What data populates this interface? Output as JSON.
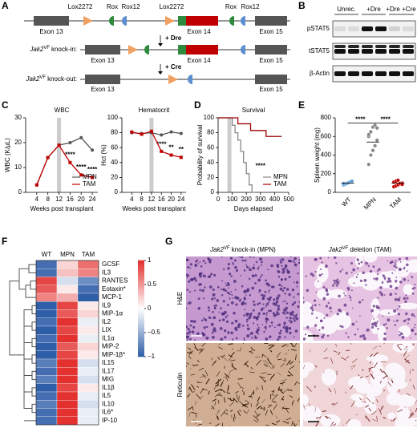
{
  "panel_labels": [
    "A",
    "B",
    "C",
    "D",
    "E",
    "F",
    "G"
  ],
  "diagram": {
    "annotations": [
      "Lox2272",
      "Rox",
      "Rox12",
      "Lox2272",
      "Rox",
      "Rox12"
    ],
    "rows": [
      {
        "exons": [
          "Exon 13",
          "Exon 14",
          "Exon 15"
        ]
      },
      {
        "label": {
          "gene": "Jak2",
          "sup": "VF",
          "text": "knock-in:"
        },
        "exons": [
          "Exon 13",
          "Exon 14",
          "Exon 15"
        ]
      },
      {
        "label": {
          "gene": "Jak2",
          "sup": "VF",
          "text": "knock-out:"
        },
        "exons": [
          "Exon 13",
          "Exon 15"
        ]
      }
    ],
    "steps": [
      "+ Dre",
      "+ Cre"
    ]
  },
  "blot": {
    "lanes": [
      "Unrec.",
      "+Dre",
      "+Dre +Cre"
    ],
    "bands": [
      "pSTAT5",
      "tSTAT5",
      "β-Actin"
    ]
  },
  "histology": {
    "columns": [
      {
        "gene": "Jak2",
        "sup": "VF",
        "text": "knock-in (MPN)"
      },
      {
        "gene": "Jak2",
        "sup": "VF",
        "text": "deletion (TAM)"
      }
    ],
    "rows": [
      "H&E",
      "Reticulin"
    ]
  },
  "chart_data": [
    {
      "type": "line",
      "title": "WBC",
      "x": [
        4,
        8,
        12,
        16,
        20,
        24
      ],
      "series": [
        {
          "name": "MPN",
          "color": "#555555",
          "values": [
            3,
            14,
            19,
            20,
            22,
            17
          ]
        },
        {
          "name": "TAM",
          "color": "#c00000",
          "values": [
            3,
            14,
            19,
            12,
            7,
            6
          ]
        }
      ],
      "xlim": [
        0,
        26
      ],
      "xticks": [
        4,
        8,
        12,
        16,
        20,
        24
      ],
      "ylim": [
        0,
        30
      ],
      "yticks": [
        0,
        10,
        20,
        30
      ],
      "xlabel": "Weeks post transplant",
      "ylabel": "WBC (K/μL)",
      "shade_x": 12,
      "legend": "lower right",
      "annotations": [
        {
          "text": "****",
          "x": 16,
          "y": 15
        },
        {
          "text": "****",
          "x": 20,
          "y": 10
        },
        {
          "text": "****",
          "x": 24,
          "y": 9
        }
      ]
    },
    {
      "type": "line",
      "title": "Hematocrit",
      "x": [
        4,
        8,
        12,
        16,
        20,
        24
      ],
      "series": [
        {
          "name": "MPN",
          "color": "#555555",
          "values": [
            80,
            79,
            80,
            77,
            81,
            79
          ]
        },
        {
          "name": "TAM",
          "color": "#c00000",
          "values": [
            81,
            78,
            82,
            55,
            50,
            47
          ]
        }
      ],
      "xlim": [
        0,
        26
      ],
      "xticks": [
        4,
        8,
        12,
        16,
        20,
        24
      ],
      "ylim": [
        0,
        100
      ],
      "yticks": [
        0,
        20,
        40,
        60,
        80,
        100
      ],
      "xlabel": "Weeks post transplant",
      "ylabel": "Hct (%)",
      "shade_x": 12,
      "annotations": [
        {
          "text": "****",
          "x": 16,
          "y": 64
        },
        {
          "text": "**",
          "x": 20,
          "y": 60
        },
        {
          "text": "**",
          "x": 24,
          "y": 57
        }
      ]
    },
    {
      "type": "step",
      "title": "Survival",
      "series": [
        {
          "name": "MPN",
          "color": "#888888",
          "x": [
            0,
            100,
            100,
            120,
            120,
            140,
            140,
            160,
            160,
            180,
            180,
            200,
            200,
            220,
            220,
            240,
            240,
            260
          ],
          "values": [
            100,
            100,
            90,
            90,
            80,
            80,
            70,
            70,
            55,
            55,
            40,
            40,
            25,
            25,
            10,
            10,
            0,
            0
          ]
        },
        {
          "name": "TAM",
          "color": "#a00000",
          "x": [
            0,
            140,
            140,
            230,
            230,
            340,
            340,
            450
          ],
          "values": [
            100,
            100,
            92,
            92,
            83,
            83,
            75,
            75
          ]
        }
      ],
      "xlim": [
        0,
        500
      ],
      "xticks": [
        0,
        100,
        200,
        300,
        400,
        500
      ],
      "ylim": [
        0,
        100
      ],
      "yticks": [
        0,
        20,
        40,
        60,
        80,
        100
      ],
      "xlabel": "Days elapsed",
      "ylabel": "Probability of survival",
      "shade_x": 80,
      "legend": "lower right",
      "annotations": [
        {
          "text": "****",
          "x": 300,
          "y": 35
        }
      ]
    },
    {
      "type": "strip",
      "categories": [
        "WT",
        "MPN",
        "TAM"
      ],
      "colors": [
        "#5b9bd5",
        "#888888",
        "#c00000"
      ],
      "points": [
        [
          80,
          90,
          100,
          110,
          120,
          95
        ],
        [
          300,
          400,
          450,
          500,
          560,
          600,
          650,
          700,
          720,
          690,
          620
        ],
        [
          60,
          70,
          80,
          90,
          100,
          110,
          120,
          130,
          95,
          85
        ]
      ],
      "means": [
        100,
        540,
        100
      ],
      "ylim": [
        0,
        800
      ],
      "yticks": [
        0,
        200,
        400,
        600,
        800
      ],
      "ylabel": "Spleen weight (mg)",
      "annotations": [
        {
          "text": "****",
          "from": 0,
          "to": 1,
          "y": 770
        },
        {
          "text": "****",
          "from": 1,
          "to": 2,
          "y": 770
        }
      ]
    },
    {
      "type": "heatmap",
      "columns": [
        "WT",
        "MPN",
        "TAM"
      ],
      "rows": [
        "GCSF",
        "IL3",
        "RANTES",
        "Eotaxin*",
        "MCP-1",
        "IL9",
        "MIP-1α",
        "IL2",
        "LIX",
        "IL1α",
        "MIP-2",
        "MIP-1β*",
        "IL15",
        "IL17",
        "MIG",
        "IL1β",
        "IL5",
        "IL10",
        "IL6*",
        "IP-10"
      ],
      "values": [
        [
          -0.9,
          0.2,
          0.7
        ],
        [
          -0.9,
          0.3,
          0.6
        ],
        [
          0.9,
          -0.2,
          -0.7
        ],
        [
          0.8,
          0.1,
          -0.9
        ],
        [
          0.6,
          0.4,
          -1
        ],
        [
          -1,
          0.9,
          0.1
        ],
        [
          -1,
          0.8,
          0.2
        ],
        [
          -0.9,
          1,
          -0.1
        ],
        [
          -1,
          0.9,
          0.1
        ],
        [
          -0.9,
          1,
          -0.1
        ],
        [
          -1,
          0.8,
          0.2
        ],
        [
          -1,
          0.9,
          0.1
        ],
        [
          -0.8,
          1,
          -0.2
        ],
        [
          -0.9,
          1,
          -0.1
        ],
        [
          -0.8,
          1,
          -0.2
        ],
        [
          -1,
          0.9,
          0.1
        ],
        [
          -0.9,
          1,
          -0.1
        ],
        [
          -0.8,
          1,
          -0.2
        ],
        [
          -0.9,
          1,
          -0.1
        ],
        [
          -0.9,
          1,
          -0.1
        ]
      ],
      "clim": [
        -1,
        1
      ],
      "cticks": [
        1,
        0.5,
        0,
        {
          "value": -0.5,
          "label": "−0.5"
        },
        {
          "value": -1,
          "label": "−1"
        }
      ]
    }
  ]
}
